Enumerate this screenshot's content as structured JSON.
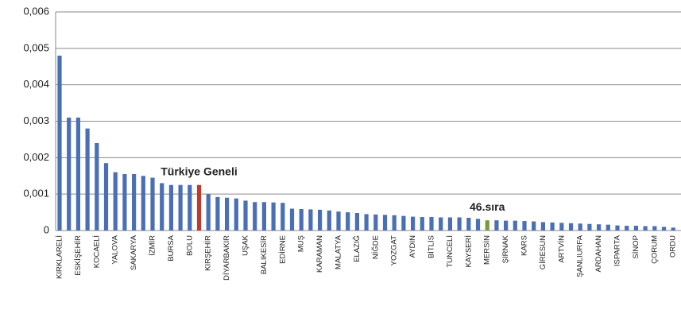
{
  "chart_data": {
    "type": "bar",
    "categories": [
      "KIRKLARELİ",
      null,
      "ESKİŞEHİR",
      null,
      "KOCAELİ",
      null,
      "YALOVA",
      null,
      "SAKARYA",
      null,
      "İZMİR",
      null,
      "BURSA",
      null,
      "BOLU",
      null,
      "KIRŞEHİR",
      null,
      "DİYARBAKIR",
      null,
      "UŞAK",
      null,
      "BALIKESİR",
      null,
      "EDİRNE",
      null,
      "MUŞ",
      null,
      "KARAMAN",
      null,
      "MALATYA",
      null,
      "ELAZIĞ",
      null,
      "NİĞDE",
      null,
      "YOZGAT",
      null,
      "AYDIN",
      null,
      "BİTLİS",
      null,
      "TUNCELİ",
      null,
      "KAYSERİ",
      null,
      "MERSİN",
      null,
      "ŞIRNAK",
      null,
      "KARS",
      null,
      "GİRESUN",
      null,
      "ARTVİN",
      null,
      "ŞANLIURFA",
      null,
      "ARDAHAN",
      null,
      "ISPARTA",
      null,
      "SİNOP",
      null,
      "ÇORUM",
      null,
      "ORDU"
    ],
    "values": [
      0.0048,
      0.0031,
      0.0031,
      0.0028,
      0.0024,
      0.00185,
      0.0016,
      0.00155,
      0.00155,
      0.0015,
      0.00145,
      0.0013,
      0.00125,
      0.00125,
      0.00125,
      0.00125,
      0.001,
      0.00092,
      0.0009,
      0.00088,
      0.00082,
      0.00078,
      0.00078,
      0.00077,
      0.00076,
      0.0006,
      0.00059,
      0.00058,
      0.00057,
      0.00055,
      0.00052,
      0.0005,
      0.00048,
      0.00045,
      0.00044,
      0.00043,
      0.00042,
      0.0004,
      0.00038,
      0.00037,
      0.00037,
      0.00036,
      0.00036,
      0.00036,
      0.00035,
      0.00032,
      0.00028,
      0.00028,
      0.00027,
      0.00027,
      0.00026,
      0.00025,
      0.00023,
      0.00022,
      0.00021,
      0.0002,
      0.00019,
      0.00018,
      0.00017,
      0.00016,
      0.00014,
      0.00013,
      0.00013,
      0.00012,
      0.00012,
      0.0001,
      8e-05
    ],
    "colors": [
      "#4a6fb5",
      "#4a6fb5",
      "#4a6fb5",
      "#4a6fb5",
      "#4a6fb5",
      "#4a6fb5",
      "#4a6fb5",
      "#4a6fb5",
      "#4a6fb5",
      "#4a6fb5",
      "#4a6fb5",
      "#4a6fb5",
      "#4a6fb5",
      "#4a6fb5",
      "#4a6fb5",
      "#c0392b",
      "#4a6fb5",
      "#4a6fb5",
      "#4a6fb5",
      "#4a6fb5",
      "#4a6fb5",
      "#4a6fb5",
      "#4a6fb5",
      "#4a6fb5",
      "#4a6fb5",
      "#4a6fb5",
      "#4a6fb5",
      "#4a6fb5",
      "#4a6fb5",
      "#4a6fb5",
      "#4a6fb5",
      "#4a6fb5",
      "#4a6fb5",
      "#4a6fb5",
      "#4a6fb5",
      "#4a6fb5",
      "#4a6fb5",
      "#4a6fb5",
      "#4a6fb5",
      "#4a6fb5",
      "#4a6fb5",
      "#4a6fb5",
      "#4a6fb5",
      "#4a6fb5",
      "#4a6fb5",
      "#4a6fb5",
      "#7a9a3a",
      "#4a6fb5",
      "#4a6fb5",
      "#4a6fb5",
      "#4a6fb5",
      "#4a6fb5",
      "#4a6fb5",
      "#4a6fb5",
      "#4a6fb5",
      "#4a6fb5",
      "#4a6fb5",
      "#4a6fb5",
      "#4a6fb5",
      "#4a6fb5",
      "#4a6fb5",
      "#4a6fb5",
      "#4a6fb5",
      "#4a6fb5",
      "#4a6fb5",
      "#4a6fb5",
      "#4a6fb5"
    ],
    "ylim": [
      0,
      0.006
    ],
    "yticks": [
      0,
      {
        "value": 0.001,
        "label": "0,001"
      },
      {
        "value": 0.002,
        "label": "0,002"
      },
      {
        "value": 0.003,
        "label": "0,003"
      },
      {
        "value": 0.004,
        "label": "0,004"
      },
      {
        "value": 0.005,
        "label": "0,005"
      },
      {
        "value": 0.006,
        "label": "0,006"
      }
    ],
    "grid": true,
    "annotations": [
      {
        "text": "Türkiye Geneli"
      },
      {
        "text": "46.sıra"
      }
    ]
  }
}
